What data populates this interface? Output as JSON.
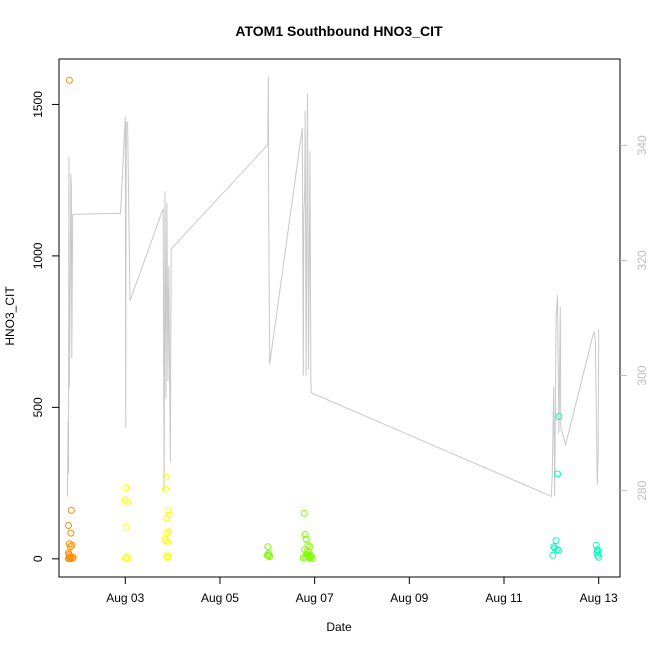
{
  "chart_data": {
    "type": "scatter",
    "title": "ATOM1 Southbound HNO3_CIT",
    "xlabel": "Date",
    "ylabel": "HNO3_CIT",
    "xlim_days": [
      1.6,
      13.45
    ],
    "ylim": [
      -60,
      1650
    ],
    "x_ticks": [
      {
        "day": 3,
        "label": "Aug 03"
      },
      {
        "day": 5,
        "label": "Aug 05"
      },
      {
        "day": 7,
        "label": "Aug 07"
      },
      {
        "day": 9,
        "label": "Aug 09"
      },
      {
        "day": 11,
        "label": "Aug 11"
      },
      {
        "day": 13,
        "label": "Aug 13"
      }
    ],
    "y_ticks": [
      0,
      500,
      1000,
      1500
    ],
    "y2lim": [
      265,
      355
    ],
    "y2_ticks": [
      280,
      300,
      320,
      340
    ],
    "series": [
      {
        "type": "points",
        "color": "#ff8c00",
        "points": [
          [
            1.82,
            1580
          ],
          [
            1.8,
            110
          ],
          [
            1.85,
            85
          ],
          [
            1.82,
            50
          ],
          [
            1.84,
            40
          ],
          [
            1.8,
            20
          ],
          [
            1.81,
            15
          ],
          [
            1.83,
            10
          ],
          [
            1.82,
            5
          ],
          [
            1.85,
            3
          ],
          [
            1.88,
            2
          ],
          [
            1.8,
            1
          ],
          [
            1.86,
            160
          ],
          [
            1.87,
            45
          ],
          [
            1.9,
            5
          ],
          [
            1.83,
            0
          ]
        ]
      },
      {
        "type": "points",
        "color": "#ffff00",
        "points": [
          [
            3.01,
            235
          ],
          [
            3.0,
            195
          ],
          [
            3.05,
            185
          ],
          [
            3.02,
            105
          ],
          [
            3.03,
            5
          ],
          [
            3.06,
            3
          ],
          [
            3.0,
            2
          ],
          [
            3.86,
            270
          ],
          [
            3.85,
            230
          ],
          [
            3.9,
            160
          ],
          [
            3.93,
            145
          ],
          [
            3.87,
            135
          ],
          [
            3.92,
            90
          ],
          [
            3.88,
            85
          ],
          [
            3.84,
            65
          ],
          [
            3.86,
            60
          ],
          [
            3.9,
            55
          ],
          [
            3.87,
            10
          ],
          [
            3.91,
            8
          ],
          [
            3.89,
            5
          ]
        ]
      },
      {
        "type": "points",
        "color": "#7fff00",
        "points": [
          [
            6.01,
            40
          ],
          [
            6.03,
            18
          ],
          [
            6.0,
            12
          ],
          [
            6.02,
            10
          ],
          [
            6.05,
            8
          ],
          [
            6.78,
            150
          ],
          [
            6.8,
            80
          ],
          [
            6.82,
            65
          ],
          [
            6.86,
            45
          ],
          [
            6.9,
            40
          ],
          [
            6.79,
            30
          ],
          [
            6.84,
            25
          ],
          [
            6.88,
            20
          ],
          [
            6.83,
            15
          ],
          [
            6.91,
            12
          ],
          [
            6.86,
            10
          ],
          [
            6.93,
            8
          ],
          [
            6.8,
            6
          ],
          [
            6.88,
            5
          ],
          [
            6.76,
            3
          ],
          [
            6.9,
            2
          ],
          [
            6.95,
            1
          ]
        ]
      },
      {
        "type": "points",
        "color": "#00ffbf",
        "points": [
          [
            12.05,
            40
          ],
          [
            12.07,
            35
          ],
          [
            12.03,
            12
          ],
          [
            12.1,
            60
          ],
          [
            12.12,
            30
          ],
          [
            12.15,
            28
          ],
          [
            12.16,
            470
          ],
          [
            12.13,
            280
          ],
          [
            12.95,
            45
          ],
          [
            12.97,
            30
          ],
          [
            12.99,
            25
          ],
          [
            12.96,
            20
          ],
          [
            12.98,
            12
          ],
          [
            13.0,
            5
          ]
        ]
      }
    ],
    "secondary_series": {
      "type": "line",
      "axis": "right",
      "color": "#c8c8c8",
      "points": [
        [
          1.78,
          279
        ],
        [
          1.79,
          292
        ],
        [
          1.8,
          283
        ],
        [
          1.81,
          338
        ],
        [
          1.82,
          298
        ],
        [
          1.84,
          320
        ],
        [
          1.85,
          335
        ],
        [
          1.86,
          333
        ],
        [
          1.87,
          303
        ],
        [
          1.88,
          318
        ],
        [
          1.89,
          328
        ],
        [
          2.9,
          328.2
        ],
        [
          3.0,
          345
        ],
        [
          3.01,
          291
        ],
        [
          3.02,
          344
        ],
        [
          3.05,
          344
        ],
        [
          3.1,
          313
        ],
        [
          3.8,
          329
        ],
        [
          3.82,
          280
        ],
        [
          3.84,
          332
        ],
        [
          3.86,
          296
        ],
        [
          3.88,
          330
        ],
        [
          3.9,
          299
        ],
        [
          3.92,
          319
        ],
        [
          3.95,
          285
        ],
        [
          3.97,
          322
        ],
        [
          6.0,
          340
        ],
        [
          6.01,
          340
        ],
        [
          6.02,
          352
        ],
        [
          6.03,
          328
        ],
        [
          6.05,
          302
        ],
        [
          6.74,
          343
        ],
        [
          6.76,
          300
        ],
        [
          6.77,
          328
        ],
        [
          6.79,
          332
        ],
        [
          6.8,
          346
        ],
        [
          6.82,
          300
        ],
        [
          6.85,
          349
        ],
        [
          6.87,
          301
        ],
        [
          6.9,
          339
        ],
        [
          6.92,
          299
        ],
        [
          6.93,
          297
        ],
        [
          12.0,
          279
        ],
        [
          12.02,
          283
        ],
        [
          12.05,
          298
        ],
        [
          12.07,
          279
        ],
        [
          12.1,
          310
        ],
        [
          12.13,
          314
        ],
        [
          12.16,
          290
        ],
        [
          12.19,
          312
        ],
        [
          12.2,
          291
        ],
        [
          12.3,
          288
        ],
        [
          12.9,
          307.7
        ],
        [
          12.93,
          306
        ],
        [
          12.97,
          281
        ],
        [
          12.99,
          287
        ],
        [
          13.0,
          308
        ]
      ]
    }
  }
}
